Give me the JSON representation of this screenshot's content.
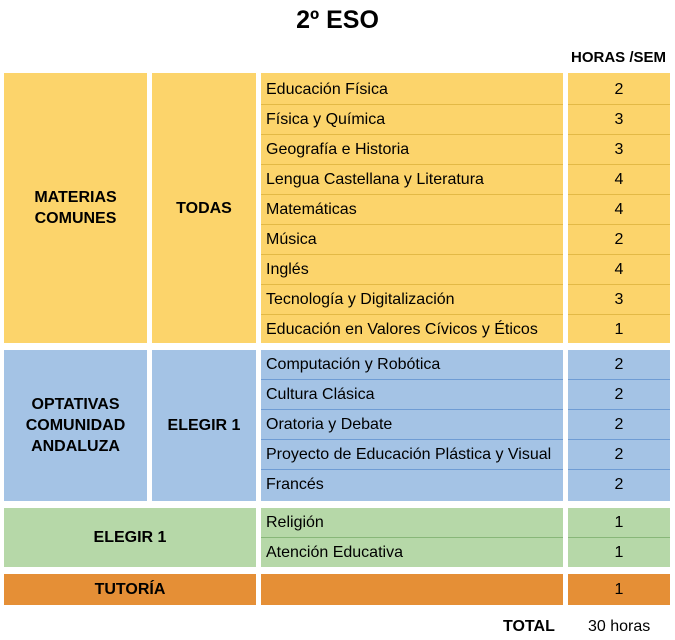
{
  "title": "2º ESO",
  "hours_header": "HORAS /SEM",
  "colors": {
    "comunes": "#fcd46b",
    "optativas": "#a4c3e5",
    "elegir": "#b6d8a8",
    "tutoria": "#e58f36",
    "comunes_line": "#e3b946",
    "optativas_line": "#6f9cd4",
    "elegir_line": "#88b779"
  },
  "sections": {
    "comunes": {
      "label": "MATERIAS COMUNES",
      "group": "TODAS",
      "rows": [
        {
          "subject": "Educación Física",
          "hours": "2"
        },
        {
          "subject": "Física y Química",
          "hours": "3"
        },
        {
          "subject": "Geografía e Historia",
          "hours": "3"
        },
        {
          "subject": "Lengua Castellana y Literatura",
          "hours": "4"
        },
        {
          "subject": "Matemáticas",
          "hours": "4"
        },
        {
          "subject": "Música",
          "hours": "2"
        },
        {
          "subject": "Inglés",
          "hours": "4"
        },
        {
          "subject": "Tecnología y Digitalización",
          "hours": "3"
        },
        {
          "subject": "Educación en Valores Cívicos y Éticos",
          "hours": "1"
        }
      ]
    },
    "optativas": {
      "label": "OPTATIVAS COMUNIDAD ANDALUZA",
      "group": "ELEGIR 1",
      "rows": [
        {
          "subject": "Computación y Robótica",
          "hours": "2"
        },
        {
          "subject": "Cultura Clásica",
          "hours": "2"
        },
        {
          "subject": "Oratoria y Debate",
          "hours": "2"
        },
        {
          "subject": "Proyecto de Educación Plástica y Visual",
          "hours": "2"
        },
        {
          "subject": "Francés",
          "hours": "2"
        }
      ]
    },
    "elegir": {
      "label": "ELEGIR 1",
      "rows": [
        {
          "subject": "Religión",
          "hours": "1"
        },
        {
          "subject": "Atención Educativa",
          "hours": "1"
        }
      ]
    },
    "tutoria": {
      "label": "TUTORÍA",
      "hours": "1"
    }
  },
  "total": {
    "label": "TOTAL",
    "value": "30 horas"
  }
}
